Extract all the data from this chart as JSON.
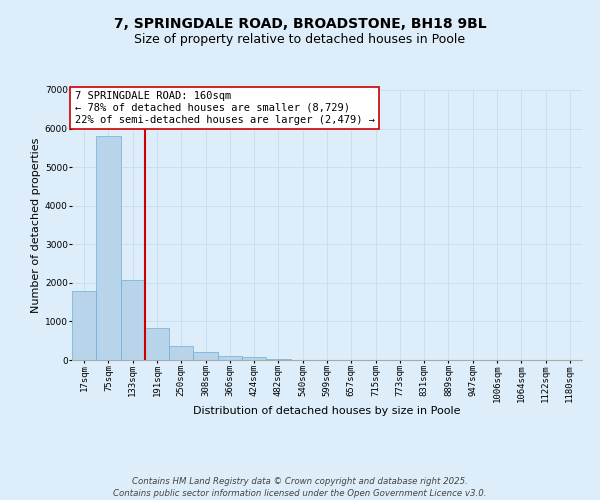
{
  "title1": "7, SPRINGDALE ROAD, BROADSTONE, BH18 9BL",
  "title2": "Size of property relative to detached houses in Poole",
  "xlabel": "Distribution of detached houses by size in Poole",
  "ylabel": "Number of detached properties",
  "bin_labels": [
    "17sqm",
    "75sqm",
    "133sqm",
    "191sqm",
    "250sqm",
    "308sqm",
    "366sqm",
    "424sqm",
    "482sqm",
    "540sqm",
    "599sqm",
    "657sqm",
    "715sqm",
    "773sqm",
    "831sqm",
    "889sqm",
    "947sqm",
    "1006sqm",
    "1064sqm",
    "1122sqm",
    "1180sqm"
  ],
  "bar_values": [
    1780,
    5800,
    2080,
    830,
    370,
    220,
    100,
    70,
    30,
    10,
    5,
    3,
    2,
    0,
    0,
    0,
    0,
    0,
    0,
    0,
    0
  ],
  "bar_color": "#b8d4ea",
  "bar_edge_color": "#6aaed6",
  "grid_color": "#c8dff0",
  "background_color": "#ddeefa",
  "vline_color": "#cc0000",
  "annotation_box_text": "7 SPRINGDALE ROAD: 160sqm\n← 78% of detached houses are smaller (8,729)\n22% of semi-detached houses are larger (2,479) →",
  "annotation_box_facecolor": "#ffffff",
  "annotation_box_edgecolor": "#cc0000",
  "ylim": [
    0,
    7000
  ],
  "yticks": [
    0,
    1000,
    2000,
    3000,
    4000,
    5000,
    6000,
    7000
  ],
  "footer1": "Contains HM Land Registry data © Crown copyright and database right 2025.",
  "footer2": "Contains public sector information licensed under the Open Government Licence v3.0.",
  "title_fontsize": 10,
  "subtitle_fontsize": 9,
  "axis_label_fontsize": 8,
  "tick_fontsize": 6.5,
  "annotation_fontsize": 7.5,
  "footer_fontsize": 6.2
}
